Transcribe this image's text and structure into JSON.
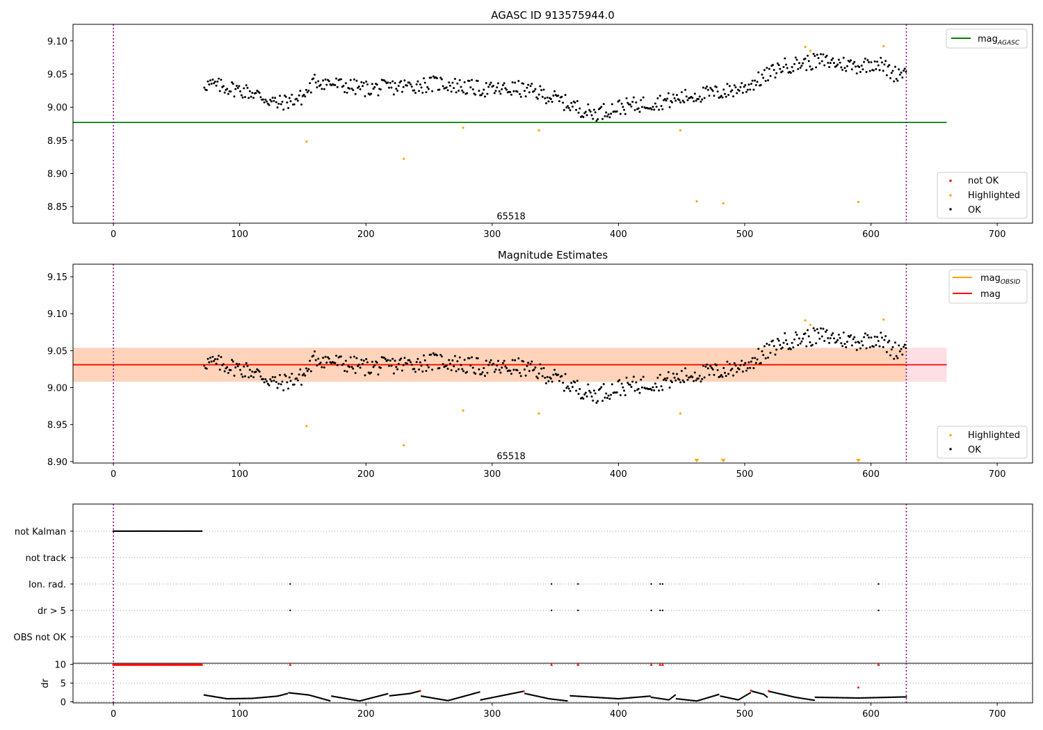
{
  "chart_data": [
    {
      "type": "scatter",
      "title": "AGASC ID 913575944.0",
      "xlabel": "",
      "ylabel": "",
      "xlim": [
        -32,
        728
      ],
      "ylim": [
        8.825,
        9.125
      ],
      "xticks": [
        0,
        100,
        200,
        300,
        400,
        500,
        600,
        700
      ],
      "xtick_labels": [
        "0",
        "100",
        "200",
        "300",
        "400",
        "500",
        "600",
        "700"
      ],
      "yticks": [
        8.85,
        8.9,
        8.95,
        9.0,
        9.05,
        9.1
      ],
      "ytick_labels": [
        "8.85",
        "8.90",
        "8.95",
        "9.00",
        "9.05",
        "9.10"
      ],
      "vlines": [
        0,
        628
      ],
      "annotation": {
        "text": "65518",
        "x": 315,
        "y": 8.835
      },
      "hline": {
        "name": "mag",
        "sub": "AGASC",
        "y": 8.977,
        "x": [
          -32,
          660
        ],
        "color": "#008000"
      },
      "legend_top": [
        {
          "name": "mag",
          "sub": "AGASC",
          "color": "#008000"
        }
      ],
      "legend_bottom": [
        {
          "name": "not OK",
          "color": "#ff0000"
        },
        {
          "name": "Highlighted",
          "color": "#ffa500"
        },
        {
          "name": "OK",
          "color": "#000000"
        }
      ],
      "legend_placement": [
        "upper right",
        "lower right"
      ],
      "ok_trend": {
        "x": [
          72,
          90,
          110,
          130,
          150,
          160,
          180,
          200,
          220,
          240,
          260,
          280,
          300,
          320,
          340,
          360,
          380,
          400,
          420,
          440,
          460,
          480,
          500,
          515,
          530,
          545,
          560,
          575,
          590,
          605,
          618,
          628
        ],
        "y": [
          9.035,
          9.03,
          9.022,
          9.005,
          9.015,
          9.04,
          9.033,
          9.028,
          9.03,
          9.033,
          9.036,
          9.03,
          9.026,
          9.028,
          9.02,
          9.005,
          8.99,
          9.0,
          9.005,
          9.01,
          9.018,
          9.022,
          9.03,
          9.045,
          9.062,
          9.066,
          9.07,
          9.066,
          9.062,
          9.068,
          9.05,
          9.055
        ]
      },
      "highlighted": [
        {
          "x": 153,
          "y": 8.948
        },
        {
          "x": 230,
          "y": 8.922
        },
        {
          "x": 277,
          "y": 8.969
        },
        {
          "x": 337,
          "y": 8.965
        },
        {
          "x": 449,
          "y": 8.965
        },
        {
          "x": 462,
          "y": 8.858
        },
        {
          "x": 483,
          "y": 8.855
        },
        {
          "x": 548,
          "y": 9.091
        },
        {
          "x": 552,
          "y": 9.085
        },
        {
          "x": 590,
          "y": 8.857
        },
        {
          "x": 610,
          "y": 9.092
        }
      ],
      "not_ok": []
    },
    {
      "type": "scatter",
      "title": "Magnitude Estimates",
      "xlabel": "",
      "ylabel": "",
      "xlim": [
        -32,
        728
      ],
      "ylim": [
        8.898,
        9.167
      ],
      "xticks": [
        0,
        100,
        200,
        300,
        400,
        500,
        600,
        700
      ],
      "xtick_labels": [
        "0",
        "100",
        "200",
        "300",
        "400",
        "500",
        "600",
        "700"
      ],
      "yticks": [
        8.9,
        8.95,
        9.0,
        9.05,
        9.1,
        9.15
      ],
      "ytick_labels": [
        "8.90",
        "8.95",
        "9.00",
        "9.05",
        "9.10",
        "9.15"
      ],
      "vlines": [
        0,
        628
      ],
      "annotation": {
        "text": "65518",
        "x": 315,
        "y": 8.907
      },
      "band_full": {
        "y": [
          9.008,
          9.054
        ],
        "x": [
          -32,
          660
        ],
        "color": "#ffc0cb"
      },
      "band_obsid": {
        "y": [
          9.008,
          9.054
        ],
        "x": [
          -32,
          628
        ],
        "color": "#ffa500"
      },
      "hline": {
        "name": "mag",
        "y": 9.031,
        "x": [
          -32,
          660
        ],
        "color": "#ff0000"
      },
      "obsid_line": {
        "name": "mag",
        "sub": "OBSID",
        "y": 9.031,
        "x": [
          -32,
          628
        ],
        "color": "#ffa500"
      },
      "legend_top": [
        {
          "name": "mag",
          "sub": "OBSID",
          "color": "#ffa500"
        },
        {
          "name": "mag",
          "sub": "",
          "color": "#ff0000"
        }
      ],
      "legend_bottom": [
        {
          "name": "Highlighted",
          "color": "#ffa500"
        },
        {
          "name": "OK",
          "color": "#000000"
        }
      ],
      "legend_placement": [
        "upper right",
        "lower right"
      ],
      "highlighted": [
        {
          "x": 153,
          "y": 8.948
        },
        {
          "x": 230,
          "y": 8.922
        },
        {
          "x": 277,
          "y": 8.969
        },
        {
          "x": 337,
          "y": 8.965
        },
        {
          "x": 449,
          "y": 8.965
        },
        {
          "x": 548,
          "y": 9.091
        },
        {
          "x": 552,
          "y": 9.085
        },
        {
          "x": 610,
          "y": 9.092
        }
      ],
      "below_axis_markers": [
        {
          "x": 462
        },
        {
          "x": 483
        },
        {
          "x": 590
        }
      ]
    },
    {
      "type": "scatter",
      "title": "",
      "xlabel": "",
      "ylabel": "",
      "xlim": [
        -32,
        728
      ],
      "categories": [
        "not Kalman",
        "not track",
        "Ion. rad.",
        "dr > 5",
        "OBS not OK"
      ],
      "vlines": [
        0,
        628
      ],
      "flags": {
        "not Kalman": {
          "x_range": [
            0,
            70
          ]
        },
        "not track": {
          "x": []
        },
        "Ion. rad.": {
          "x": [
            140,
            347,
            368,
            426,
            433,
            435,
            606
          ]
        },
        "dr > 5": {
          "x": [
            140,
            347,
            368,
            426,
            433,
            435,
            606
          ]
        },
        "OBS not OK": {
          "x": []
        }
      }
    },
    {
      "type": "scatter",
      "title": "",
      "xlabel": "",
      "ylabel": "dr",
      "xlim": [
        -32,
        728
      ],
      "ylim": [
        -0.3,
        10.3
      ],
      "yticks": [
        0,
        5,
        10
      ],
      "ytick_labels": [
        "0",
        "5",
        "10"
      ],
      "vlines": [
        0,
        628
      ],
      "clipped_value": 10,
      "clipped_points": {
        "x_range": [
          0,
          70
        ],
        "x": [
          140,
          347,
          368,
          426,
          433,
          435,
          606
        ]
      },
      "dr_segments": [
        {
          "x": [
            72,
            90,
            110,
            130,
            138
          ],
          "y": [
            1.8,
            0.8,
            0.9,
            1.5,
            2.2
          ]
        },
        {
          "x": [
            139,
            155,
            172
          ],
          "y": [
            2.4,
            1.8,
            0.2
          ]
        },
        {
          "x": [
            173,
            195,
            218
          ],
          "y": [
            1.5,
            0.2,
            2.2
          ]
        },
        {
          "x": [
            219,
            235,
            243
          ],
          "y": [
            1.6,
            2.2,
            2.9
          ]
        },
        {
          "x": [
            244,
            265,
            290
          ],
          "y": [
            1.5,
            0.3,
            2.6
          ]
        },
        {
          "x": [
            291,
            310,
            325
          ],
          "y": [
            0.5,
            1.8,
            2.8
          ]
        },
        {
          "x": [
            326,
            345,
            360
          ],
          "y": [
            2.2,
            0.8,
            0.2
          ]
        },
        {
          "x": [
            362,
            400,
            425
          ],
          "y": [
            1.6,
            0.8,
            1.5
          ]
        },
        {
          "x": [
            426,
            440,
            445
          ],
          "y": [
            1.2,
            0.5,
            1.8
          ]
        },
        {
          "x": [
            446,
            462,
            480
          ],
          "y": [
            0.8,
            0.2,
            2.0
          ]
        },
        {
          "x": [
            481,
            495,
            505
          ],
          "y": [
            1.5,
            0.5,
            2.5
          ]
        },
        {
          "x": [
            506,
            515,
            518
          ],
          "y": [
            2.8,
            2.0,
            1.2
          ]
        },
        {
          "x": [
            519,
            540,
            555
          ],
          "y": [
            2.8,
            1.2,
            0.4
          ]
        },
        {
          "x": [
            556,
            590,
            628
          ],
          "y": [
            1.2,
            1.0,
            1.3
          ]
        }
      ],
      "red_points": [
        {
          "x": 243,
          "y": 2.9
        },
        {
          "x": 325,
          "y": 2.8
        },
        {
          "x": 505,
          "y": 3.0
        },
        {
          "x": 519,
          "y": 2.9
        },
        {
          "x": 590,
          "y": 3.8
        }
      ]
    }
  ]
}
